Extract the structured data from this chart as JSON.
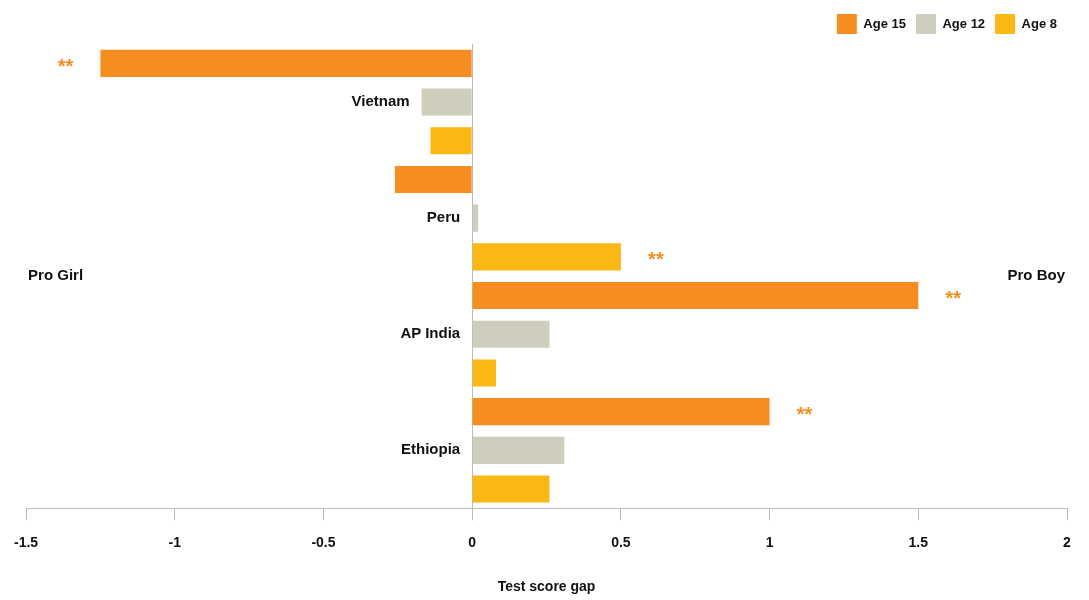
{
  "chart_data": {
    "type": "bar",
    "orientation": "horizontal",
    "xlabel": "Test score gap",
    "categories": [
      "Vietnam",
      "Peru",
      "AP India",
      "Ethiopia"
    ],
    "series": [
      {
        "name": "Age 15",
        "color": "#f68d20",
        "values": [
          -1.25,
          -0.26,
          1.5,
          1.0
        ],
        "value_labels": [
          "**",
          null,
          "**",
          "**"
        ]
      },
      {
        "name": "Age 12",
        "color": "#cfcdbb",
        "values": [
          -0.17,
          0.02,
          0.26,
          0.31
        ]
      },
      {
        "name": "Age 8",
        "color": "#fbb815",
        "values": [
          -0.14,
          0.5,
          0.08,
          0.26
        ],
        "value_labels": [
          null,
          "**",
          null,
          null
        ]
      }
    ],
    "xlim": [
      -1.5,
      2
    ],
    "xticks": [
      -1.5,
      -1,
      -0.5,
      0,
      0.5,
      1,
      1.5,
      2
    ],
    "grid": false,
    "legend": "top right",
    "annotations": [
      "Pro Girl",
      "Pro Boy"
    ]
  }
}
